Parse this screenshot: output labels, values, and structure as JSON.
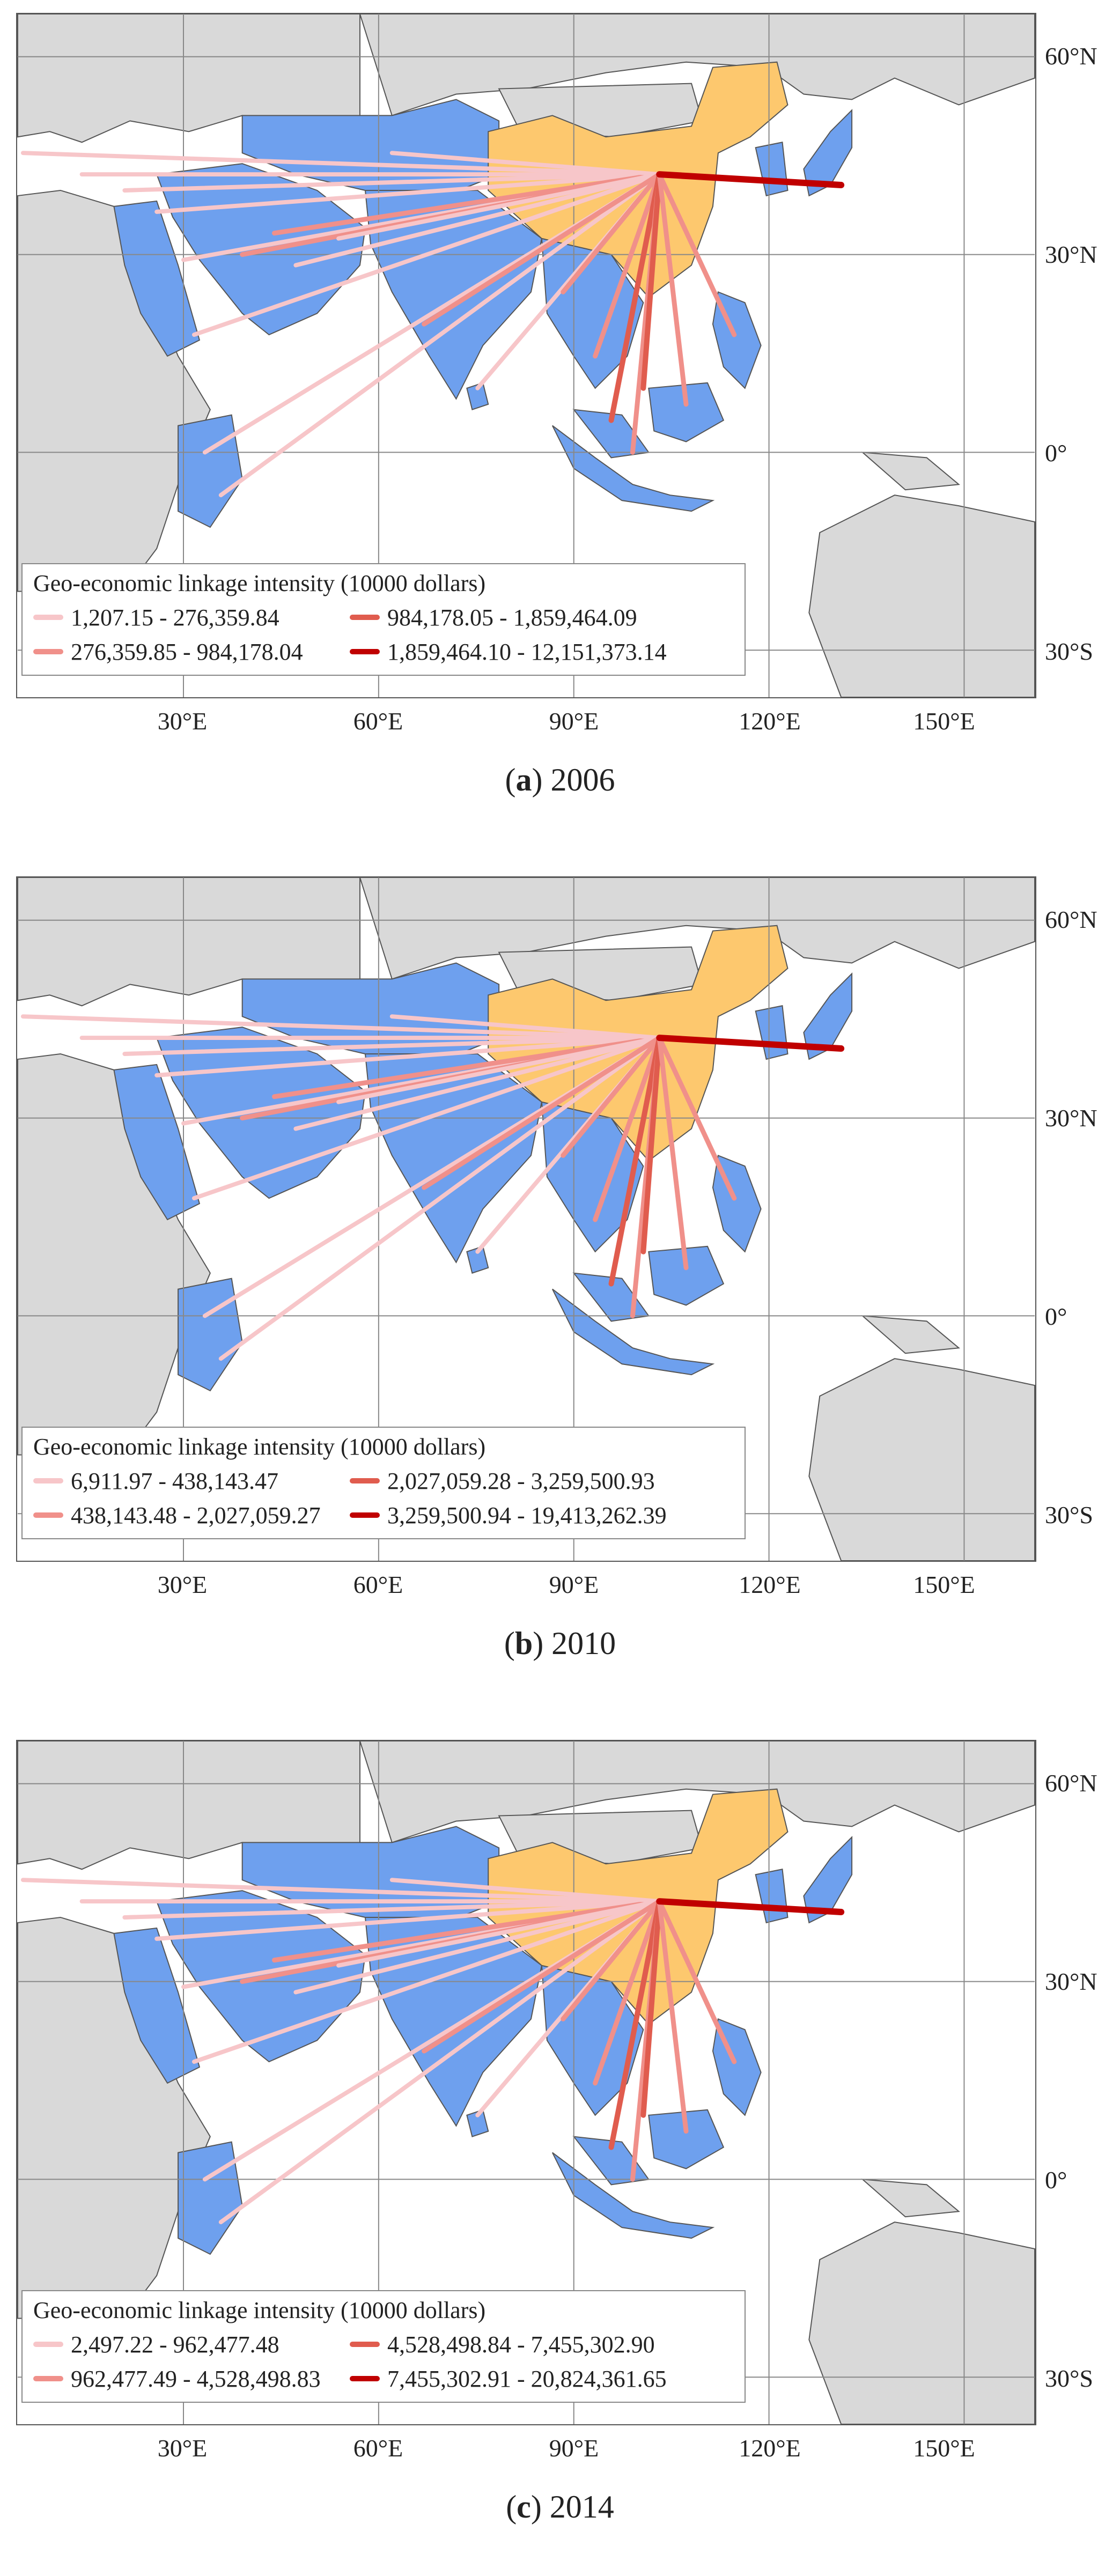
{
  "figure": {
    "axis_labels": {
      "latitude": [
        "60°N",
        "30°N",
        "0°",
        "30°S"
      ],
      "longitude": [
        "30°E",
        "60°E",
        "90°E",
        "120°E",
        "150°E"
      ]
    },
    "colors": {
      "ocean": "#ffffff",
      "land": "#d9d9d9",
      "china": "#fdc86e",
      "partner_country": "#6ea0ee",
      "class_1": "#f7c6c9",
      "class_2": "#f0908a",
      "class_3": "#e05c4e",
      "class_4": "#c00000"
    },
    "legend_title": "Geo-economic linkage intensity (10000 dollars)"
  },
  "panels": [
    {
      "caption_letter": "a",
      "caption_year": "2006",
      "legend_ranges": [
        "1,207.15 - 276,359.84",
        "276,359.85 - 984,178.04",
        "984,178.05 - 1,859,464.09",
        "1,859,464.10 - 12,151,373.14"
      ]
    },
    {
      "caption_letter": "b",
      "caption_year": "2010",
      "legend_ranges": [
        "6,911.97 - 438,143.47",
        "438,143.48 - 2,027,059.27",
        "2,027,059.28 - 3,259,500.93",
        "3,259,500.94 - 19,413,262.39"
      ]
    },
    {
      "caption_letter": "c",
      "caption_year": "2014",
      "legend_ranges": [
        "2,497.22 - 962,477.48",
        "962,477.49 - 4,528,498.83",
        "4,528,498.84 - 7,455,302.90",
        "7,455,302.91 - 20,824,361.65"
      ]
    }
  ]
}
